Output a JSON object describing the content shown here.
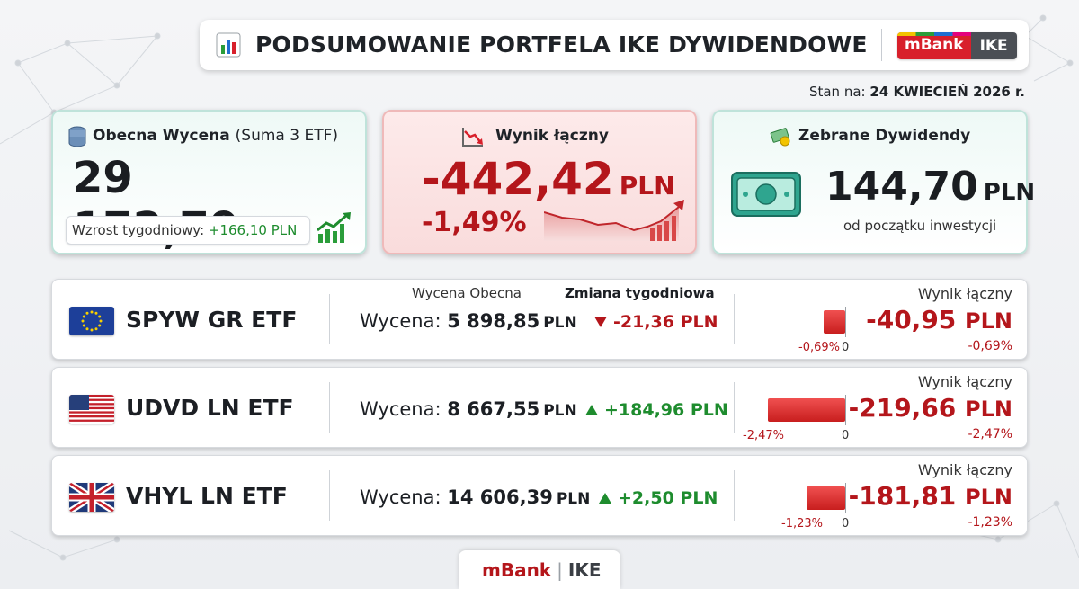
{
  "header": {
    "title": "PODSUMOWANIE PORTFELA IKE DYWIDENDOWE",
    "brand_m": "mBank",
    "brand_ike": "IKE"
  },
  "as_of": {
    "label": "Stan na:",
    "value": "24 KWIECIEŃ 2026 r."
  },
  "summary": {
    "valuation": {
      "label": "Obecna Wycena",
      "label_note": "(Suma 3 ETF)",
      "amount": "29 172,79",
      "currency": "PLN",
      "weekly_label": "Wzrost tygodniowy:",
      "weekly_value": "+166,10 PLN"
    },
    "result": {
      "label": "Wynik łączny",
      "amount": "-442,42",
      "currency": "PLN",
      "percent": "-1,49%"
    },
    "dividends": {
      "label": "Zebrane Dywidendy",
      "amount": "144,70",
      "currency": "PLN",
      "note": "od początku inwestycji"
    }
  },
  "table_headers": {
    "current_valuation": "Wycena Obecna",
    "weekly_change": "Zmiana tygodniowa",
    "total_result": "Wynik łączny"
  },
  "etfs": [
    {
      "name": "SPYW GR ETF",
      "flag": "eu-flag",
      "valuation_label": "Wycena:",
      "valuation": "5 898,85",
      "currency": "PLN",
      "weekly_change": "-21,36 PLN",
      "weekly_direction": "down",
      "result_label": "Wynik łączny",
      "result": "-40,95",
      "result_currency": "PLN",
      "result_percent": "-0,69%",
      "bar_label": "-0,69%",
      "bar_percent": -0.69,
      "zero": "0"
    },
    {
      "name": "UDVD LN ETF",
      "flag": "us-flag",
      "valuation_label": "Wycena:",
      "valuation": "8 667,55",
      "currency": "PLN",
      "weekly_change": "+184,96 PLN",
      "weekly_direction": "up",
      "result_label": "Wynik łączny",
      "result": "-219,66",
      "result_currency": "PLN",
      "result_percent": "-2,47%",
      "bar_label": "-2,47%",
      "bar_percent": -2.47,
      "zero": "0"
    },
    {
      "name": "VHYL LN ETF",
      "flag": "uk-flag",
      "valuation_label": "Wycena:",
      "valuation": "14 606,39",
      "currency": "PLN",
      "weekly_change": "+2,50 PLN",
      "weekly_direction": "up",
      "result_label": "Wynik łączny",
      "result": "-181,81",
      "result_currency": "PLN",
      "result_percent": "-1,23%",
      "bar_label": "-1,23%",
      "bar_percent": -1.23,
      "zero": "0"
    }
  ],
  "footer": {
    "brand_m": "mBank",
    "sep": "|",
    "brand_ike": "IKE"
  },
  "colors": {
    "negative": "#b4161b",
    "positive": "#1e8c2e",
    "brand_red": "#d8202b"
  }
}
